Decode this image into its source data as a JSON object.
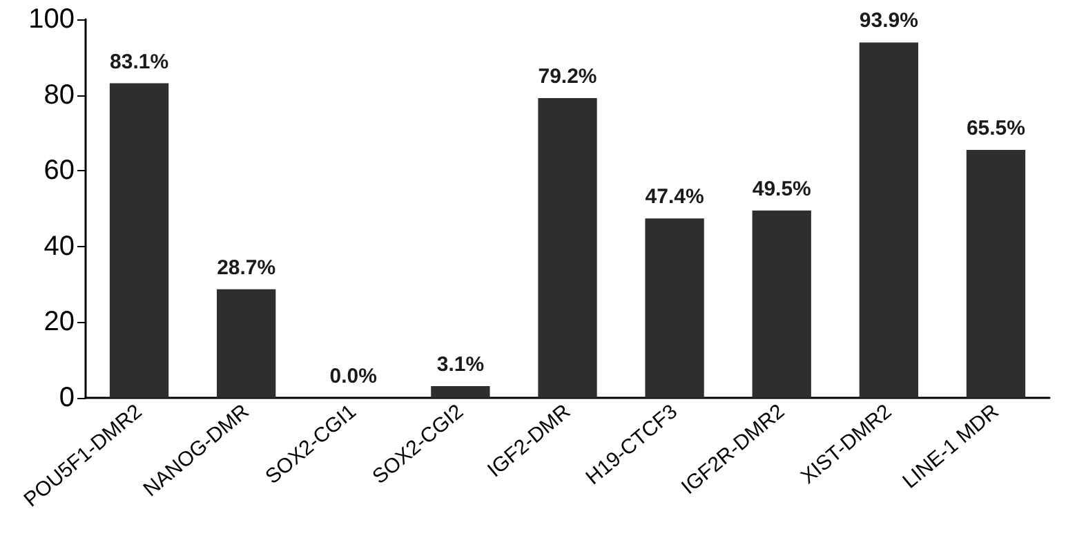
{
  "chart_data": {
    "type": "bar",
    "categories": [
      "POU5F1-DMR2",
      "NANOG-DMR",
      "SOX2-CGI1",
      "SOX2-CGI2",
      "IGF2-DMR",
      "H19-CTCF3",
      "IGF2R-DMR2",
      "XIST-DMR2",
      "LINE-1 MDR"
    ],
    "values": [
      83.1,
      28.7,
      0.0,
      3.1,
      79.2,
      47.4,
      49.5,
      93.9,
      65.5
    ],
    "value_labels": [
      "83.1%",
      "28.7%",
      "0.0%",
      "3.1%",
      "79.2%",
      "47.4%",
      "49.5%",
      "93.9%",
      "65.5%"
    ],
    "color": "#2e2e2e",
    "ylim": [
      0,
      100
    ],
    "yticks": [
      0,
      20,
      40,
      60,
      80,
      100
    ],
    "grid": false
  }
}
